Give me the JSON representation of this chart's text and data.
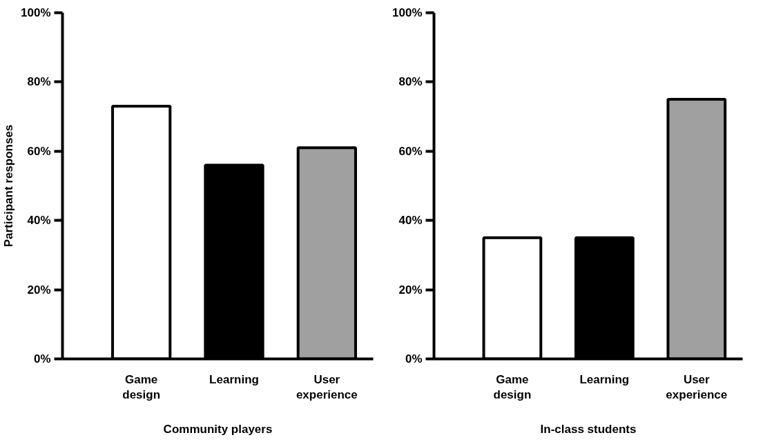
{
  "chart_data": [
    {
      "type": "bar",
      "xlabel": "Community players",
      "ylabel": "Participant responses",
      "categories": [
        "Game design",
        "Learning",
        "User experience"
      ],
      "values": [
        73,
        56,
        61
      ],
      "colors": [
        "#ffffff",
        "#000000",
        "#a0a0a0"
      ],
      "ylim": [
        0,
        100
      ],
      "yticks": [
        {
          "value": 0,
          "label": "0%"
        },
        {
          "value": 20,
          "label": "20%"
        },
        {
          "value": 40,
          "label": "40%"
        },
        {
          "value": 60,
          "label": "60%"
        },
        {
          "value": 80,
          "label": "80%"
        },
        {
          "value": 100,
          "label": "100%"
        }
      ]
    },
    {
      "type": "bar",
      "xlabel": "In-class students",
      "categories": [
        "Game design",
        "Learning",
        "User experience"
      ],
      "values": [
        35,
        35,
        75
      ],
      "colors": [
        "#ffffff",
        "#000000",
        "#a0a0a0"
      ],
      "ylim": [
        0,
        100
      ],
      "yticks": [
        {
          "value": 0,
          "label": "0%"
        },
        {
          "value": 20,
          "label": "20%"
        },
        {
          "value": 40,
          "label": "40%"
        },
        {
          "value": 60,
          "label": "60%"
        },
        {
          "value": 80,
          "label": "80%"
        },
        {
          "value": 100,
          "label": "100%"
        }
      ]
    }
  ]
}
